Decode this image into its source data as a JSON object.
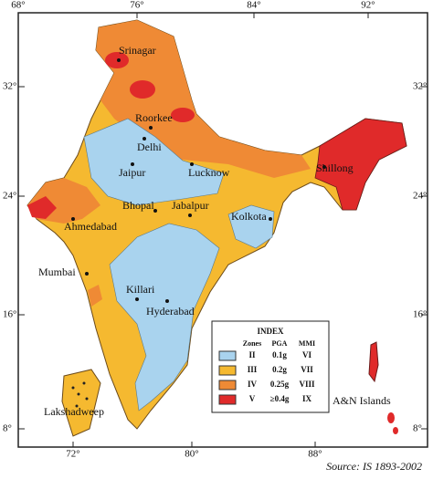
{
  "top_ticks": [
    "68°",
    "76°",
    "84°",
    "92°"
  ],
  "bottom_ticks": [
    "72°",
    "80°",
    "88°"
  ],
  "left_ticks": [
    "32°",
    "24°",
    "16°",
    "8°"
  ],
  "right_ticks": [
    "32°",
    "24°",
    "16°",
    "8°"
  ],
  "places": [
    "Srinagar",
    "Roorkee",
    "Delhi",
    "Jaipur",
    "Lucknow",
    "Shillong",
    "Bhopal",
    "Jabalpur",
    "Ahmedabad",
    "Kolkota",
    "Mumbai",
    "Killari",
    "Hyderabad",
    "Lakshadweep",
    "A&N Islands"
  ],
  "legend": {
    "title": "INDEX",
    "headers": [
      "Zones",
      "PGA",
      "MMI"
    ],
    "rows": [
      [
        "II",
        "0.1g",
        "VI"
      ],
      [
        "III",
        "0.2g",
        "VII"
      ],
      [
        "IV",
        "0.25g",
        "VIII"
      ],
      [
        "V",
        "≥0.4g",
        "IX"
      ]
    ]
  },
  "source": "Source: IS 1893-2002"
}
